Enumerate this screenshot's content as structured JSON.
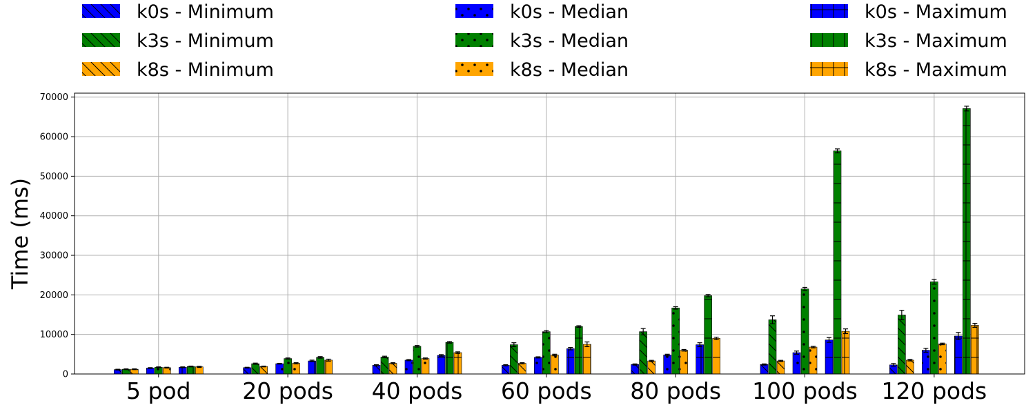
{
  "chart_data": {
    "type": "bar",
    "title": "",
    "xlabel": "",
    "ylabel": "Time (ms)",
    "ylim": [
      0,
      71000
    ],
    "yticks": [
      0,
      10000,
      20000,
      30000,
      40000,
      50000,
      60000,
      70000
    ],
    "grid": true,
    "legend_position": "top",
    "categories": [
      "5 pod",
      "20 pods",
      "40 pods",
      "60 pods",
      "80 pods",
      "100 pods",
      "120 pods"
    ],
    "groups": [
      {
        "stat": "Minimum",
        "pattern": "diagonal"
      },
      {
        "stat": "Median",
        "pattern": "dots"
      },
      {
        "stat": "Maximum",
        "pattern": "grid"
      }
    ],
    "series": [
      {
        "name": "k0s - Minimum",
        "color": "#0000ff",
        "pattern": "diagonal",
        "values": [
          1100,
          1600,
          2200,
          2200,
          2400,
          2400,
          2300
        ],
        "errors": [
          100,
          100,
          150,
          150,
          150,
          150,
          350
        ]
      },
      {
        "name": "k3s - Minimum",
        "color": "#008000",
        "pattern": "diagonal",
        "values": [
          1200,
          2600,
          4300,
          7400,
          10700,
          13700,
          14900
        ],
        "errors": [
          100,
          150,
          200,
          500,
          800,
          1000,
          1200
        ]
      },
      {
        "name": "k8s - Minimum",
        "color": "#ffa500",
        "pattern": "diagonal",
        "values": [
          1200,
          1900,
          2700,
          2700,
          3300,
          3300,
          3500
        ],
        "errors": [
          100,
          100,
          150,
          150,
          150,
          150,
          200
        ]
      },
      {
        "name": "k0s - Median",
        "color": "#0000ff",
        "pattern": "dots",
        "values": [
          1500,
          2600,
          3500,
          4200,
          4800,
          5400,
          6000
        ],
        "errors": [
          100,
          100,
          150,
          150,
          200,
          400,
          500
        ]
      },
      {
        "name": "k3s - Median",
        "color": "#008000",
        "pattern": "dots",
        "values": [
          1700,
          3900,
          7000,
          10700,
          16700,
          21500,
          23300
        ],
        "errors": [
          100,
          150,
          200,
          300,
          300,
          400,
          600
        ]
      },
      {
        "name": "k8s - Median",
        "color": "#ffa500",
        "pattern": "dots",
        "values": [
          1600,
          2700,
          3900,
          4800,
          6000,
          6800,
          7600
        ],
        "errors": [
          100,
          150,
          150,
          200,
          200,
          200,
          200
        ]
      },
      {
        "name": "k0s - Maximum",
        "color": "#0000ff",
        "pattern": "grid",
        "values": [
          1700,
          3300,
          4700,
          6400,
          7400,
          8600,
          9600
        ],
        "errors": [
          100,
          200,
          200,
          300,
          500,
          600,
          900
        ]
      },
      {
        "name": "k3s - Maximum",
        "color": "#008000",
        "pattern": "grid",
        "values": [
          1900,
          4200,
          8000,
          12000,
          19800,
          56400,
          67100
        ],
        "errors": [
          100,
          200,
          200,
          200,
          300,
          500,
          600
        ]
      },
      {
        "name": "k8s - Maximum",
        "color": "#ffa500",
        "pattern": "grid",
        "values": [
          1800,
          3500,
          5400,
          7500,
          9000,
          10800,
          12300
        ],
        "errors": [
          150,
          250,
          200,
          600,
          300,
          600,
          500
        ]
      }
    ]
  }
}
